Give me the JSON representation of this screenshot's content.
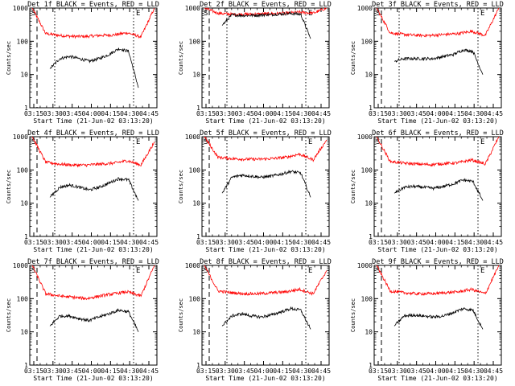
{
  "chart_data": [
    {
      "type": "line",
      "title": "Det 1f BLACK = Events, RED = LLD",
      "xlabel": "Start Time (21-Jun-02 03:13:20)",
      "ylabel": "Counts/sec",
      "x_ticks": [
        "03:15",
        "03:30",
        "03:45",
        "04:00",
        "04:15",
        "04:30",
        "04:45"
      ],
      "y_ticks": [
        "1",
        "10",
        "100",
        "1000"
      ],
      "ylim": [
        1,
        1000
      ],
      "yscale": "log",
      "start_marker": "S",
      "end_marker": "E",
      "series": [
        {
          "color": "#ff0000",
          "values": [
            1000,
            170,
            150,
            140,
            140,
            150,
            155,
            180,
            135,
            1000
          ]
        },
        {
          "color": "#000000",
          "values": [
            15,
            30,
            35,
            30,
            25,
            30,
            40,
            60,
            50,
            4
          ]
        }
      ]
    },
    {
      "type": "line",
      "title": "Det 2f BLACK = Events, RED = LLD",
      "xlabel": "Start Time (21-Jun-02 03:13:20)",
      "ylabel": "Counts/sec",
      "x_ticks": [
        "03:15",
        "03:30",
        "03:45",
        "04:00",
        "04:15",
        "04:30",
        "04:45"
      ],
      "y_ticks": [
        "1",
        "10",
        "100",
        "1000"
      ],
      "ylim": [
        1,
        1000
      ],
      "yscale": "log",
      "start_marker": "S",
      "end_marker": "E",
      "series": [
        {
          "color": "#ff0000",
          "values": [
            1000,
            700,
            650,
            650,
            660,
            680,
            700,
            750,
            700,
            1000
          ]
        },
        {
          "color": "#000000",
          "values": [
            300,
            620,
            600,
            600,
            620,
            640,
            660,
            690,
            650,
            120
          ]
        }
      ]
    },
    {
      "type": "line",
      "title": "Det 3f BLACK = Events, RED = LLD",
      "xlabel": "Start Time (21-Jun-02 03:13:20)",
      "ylabel": "Counts/sec",
      "x_ticks": [
        "03:15",
        "03:30",
        "03:45",
        "04:00",
        "04:15",
        "04:30",
        "04:45"
      ],
      "y_ticks": [
        "1",
        "10",
        "100",
        "1000"
      ],
      "ylim": [
        1,
        1000
      ],
      "yscale": "log",
      "start_marker": "S",
      "end_marker": "E",
      "series": [
        {
          "color": "#ff0000",
          "values": [
            1000,
            180,
            160,
            150,
            150,
            160,
            170,
            200,
            150,
            1000
          ]
        },
        {
          "color": "#000000",
          "values": [
            25,
            30,
            30,
            30,
            30,
            35,
            40,
            55,
            50,
            10
          ]
        }
      ]
    },
    {
      "type": "line",
      "title": "Det 4f BLACK = Events, RED = LLD",
      "xlabel": "Start Time (21-Jun-02 03:13:20)",
      "ylabel": "Counts/sec",
      "x_ticks": [
        "03:15",
        "03:30",
        "03:45",
        "04:00",
        "04:15",
        "04:30",
        "04:45"
      ],
      "y_ticks": [
        "1",
        "10",
        "100",
        "1000"
      ],
      "ylim": [
        1,
        1000
      ],
      "yscale": "log",
      "start_marker": "S",
      "end_marker": "E",
      "series": [
        {
          "color": "#ff0000",
          "values": [
            1000,
            170,
            150,
            140,
            140,
            150,
            160,
            190,
            140,
            700
          ]
        },
        {
          "color": "#000000",
          "values": [
            15,
            30,
            35,
            30,
            25,
            30,
            40,
            55,
            50,
            12
          ]
        }
      ]
    },
    {
      "type": "line",
      "title": "Det 5f BLACK = Events, RED = LLD",
      "xlabel": "Start Time (21-Jun-02 03:13:20)",
      "ylabel": "Counts/sec",
      "x_ticks": [
        "03:15",
        "03:30",
        "03:45",
        "04:00",
        "04:15",
        "04:30",
        "04:45"
      ],
      "y_ticks": [
        "1",
        "10",
        "100",
        "1000"
      ],
      "ylim": [
        1,
        1000
      ],
      "yscale": "log",
      "start_marker": "S",
      "end_marker": "E",
      "series": [
        {
          "color": "#ff0000",
          "values": [
            1000,
            240,
            220,
            210,
            210,
            220,
            240,
            300,
            200,
            800
          ]
        },
        {
          "color": "#000000",
          "values": [
            20,
            60,
            70,
            65,
            60,
            65,
            75,
            90,
            80,
            15
          ]
        }
      ]
    },
    {
      "type": "line",
      "title": "Det 6f BLACK = Events, RED = LLD",
      "xlabel": "Start Time (21-Jun-02 03:13:20)",
      "ylabel": "Counts/sec",
      "x_ticks": [
        "03:15",
        "03:30",
        "03:45",
        "04:00",
        "04:15",
        "04:30",
        "04:45"
      ],
      "y_ticks": [
        "1",
        "10",
        "100",
        "1000"
      ],
      "ylim": [
        1,
        1000
      ],
      "yscale": "log",
      "start_marker": "S",
      "end_marker": "E",
      "series": [
        {
          "color": "#ff0000",
          "values": [
            1000,
            180,
            160,
            150,
            145,
            155,
            165,
            200,
            150,
            1000
          ]
        },
        {
          "color": "#000000",
          "values": [
            20,
            30,
            32,
            30,
            28,
            32,
            38,
            50,
            45,
            12
          ]
        }
      ]
    },
    {
      "type": "line",
      "title": "Det 7f BLACK = Events, RED = LLD",
      "xlabel": "Start Time (21-Jun-02 03:13:20)",
      "ylabel": "Counts/sec",
      "x_ticks": [
        "03:15",
        "03:30",
        "03:45",
        "04:00",
        "04:15",
        "04:30",
        "04:45"
      ],
      "y_ticks": [
        "1",
        "10",
        "100",
        "1000"
      ],
      "ylim": [
        1,
        1000
      ],
      "yscale": "log",
      "start_marker": "S",
      "end_marker": "E",
      "series": [
        {
          "color": "#ff0000",
          "values": [
            1000,
            140,
            120,
            110,
            100,
            120,
            140,
            160,
            120,
            1000
          ]
        },
        {
          "color": "#000000",
          "values": [
            15,
            30,
            30,
            25,
            22,
            28,
            35,
            45,
            40,
            10
          ]
        }
      ]
    },
    {
      "type": "line",
      "title": "Det 8f BLACK = Events, RED = LLD",
      "xlabel": "Start Time (21-Jun-02 03:13:20)",
      "ylabel": "Counts/sec",
      "x_ticks": [
        "03:15",
        "03:30",
        "03:45",
        "04:00",
        "04:15",
        "04:30",
        "04:45"
      ],
      "y_ticks": [
        "1",
        "10",
        "100",
        "1000"
      ],
      "ylim": [
        1,
        1000
      ],
      "yscale": "log",
      "start_marker": "S",
      "end_marker": "E",
      "series": [
        {
          "color": "#ff0000",
          "values": [
            1000,
            170,
            150,
            140,
            140,
            150,
            160,
            190,
            140,
            700
          ]
        },
        {
          "color": "#000000",
          "values": [
            15,
            30,
            35,
            30,
            28,
            32,
            40,
            50,
            45,
            12
          ]
        }
      ]
    },
    {
      "type": "line",
      "title": "Det 9f BLACK = Events, RED = LLD",
      "xlabel": "Start Time (21-Jun-02 03:13:20)",
      "ylabel": "Counts/sec",
      "x_ticks": [
        "03:15",
        "03:30",
        "03:45",
        "04:00",
        "04:15",
        "04:30",
        "04:45"
      ],
      "y_ticks": [
        "1",
        "10",
        "100",
        "1000"
      ],
      "ylim": [
        1,
        1000
      ],
      "yscale": "log",
      "start_marker": "S",
      "end_marker": "E",
      "series": [
        {
          "color": "#ff0000",
          "values": [
            1000,
            170,
            150,
            140,
            140,
            150,
            160,
            190,
            140,
            1000
          ]
        },
        {
          "color": "#000000",
          "values": [
            15,
            30,
            32,
            30,
            28,
            30,
            38,
            50,
            45,
            12
          ]
        }
      ]
    }
  ]
}
